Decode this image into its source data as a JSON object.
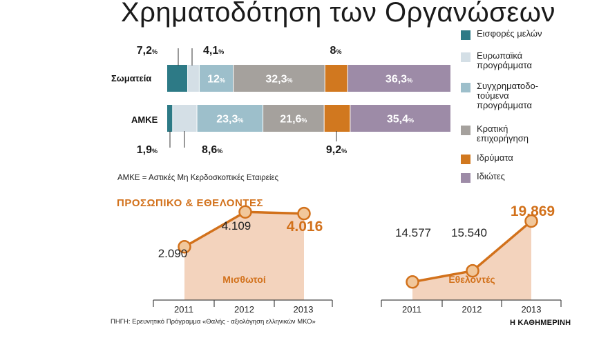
{
  "title": "Χρηματοδότηση των Οργανώσεων",
  "colors": {
    "member_fees": "#2d7a86",
    "eu_programs": "#d4dfe6",
    "cofinanced": "#9dbfcb",
    "state": "#a5a19d",
    "foundations": "#d1781f",
    "private": "#9d8ba7",
    "accent_orange": "#d2711b",
    "area_fill": "#f3d3bd",
    "point_fill": "#f1c79b"
  },
  "legend": [
    {
      "label": "Εισφορές μελών",
      "color": "#2d7a86"
    },
    {
      "label": "Ευρωπαϊκά\nπρογράμματα",
      "color": "#d4dfe6"
    },
    {
      "label": "Συγχρηματοδο-\nτούμενα\nπρογράμματα",
      "color": "#9dbfcb"
    },
    {
      "label": "Κρατική\nεπιχορήγηση",
      "color": "#a5a19d"
    },
    {
      "label": "Ιδρύματα",
      "color": "#d1781f"
    },
    {
      "label": "Ιδιώτες",
      "color": "#9d8ba7"
    }
  ],
  "note": "ΑΜΚΕ = Αστικές Μη Κερδοσκοπικές Εταιρείες",
  "subtitle": "ΠΡΟΣΩΠΙΚΟ & ΕΘΕΛΟΝΤΕΣ",
  "source": "ΠΗΓΗ: Ερευνητικό Πρόγραμμα «Θαλής - αξιολόγηση ελληνικών ΜΚΟ»",
  "brand": "Η ΚΑΘΗΜΕΡΙΝΗ",
  "chart_data": [
    {
      "type": "bar",
      "stacked": true,
      "orientation": "horizontal",
      "unit": "%",
      "categories": [
        "Σωματεία",
        "ΑΜΚΕ"
      ],
      "series": [
        {
          "name": "Εισφορές μελών",
          "values": [
            7.2,
            1.9
          ],
          "labels": [
            "7,2",
            "1,9"
          ]
        },
        {
          "name": "Ευρωπαϊκά προγράμματα",
          "values": [
            4.1,
            8.6
          ],
          "labels": [
            "4,1",
            "8,6"
          ]
        },
        {
          "name": "Συγχρηματοδοτούμενα προγράμματα",
          "values": [
            12,
            23.3
          ],
          "labels": [
            "12",
            "23,3"
          ]
        },
        {
          "name": "Κρατική επιχορήγηση",
          "values": [
            32.3,
            21.6
          ],
          "labels": [
            "32,3",
            "21,6"
          ]
        },
        {
          "name": "Ιδρύματα",
          "values": [
            8,
            9.2
          ],
          "labels": [
            "8",
            "9,2"
          ]
        },
        {
          "name": "Ιδιώτες",
          "values": [
            36.3,
            35.4
          ],
          "labels": [
            "36,3",
            "35,4"
          ]
        }
      ]
    },
    {
      "type": "area",
      "label": "Μισθωτοί",
      "x": [
        "2011",
        "2012",
        "2013"
      ],
      "values": [
        2090,
        4109,
        4016
      ],
      "value_labels": [
        "2.090",
        "4.109",
        "4.016"
      ]
    },
    {
      "type": "area",
      "label": "Εθελοντές",
      "x": [
        "2011",
        "2012",
        "2013"
      ],
      "values": [
        14577,
        15540,
        19869
      ],
      "value_labels": [
        "14.577",
        "15.540",
        "19.869"
      ]
    }
  ]
}
